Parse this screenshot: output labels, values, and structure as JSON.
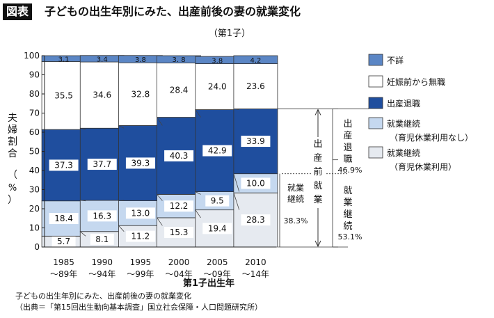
{
  "header": {
    "badge": "図表",
    "title": "子どもの出生年別にみた、出産前後の妻の就業変化"
  },
  "chart_data": {
    "type": "bar",
    "stacked": true,
    "subtitle": "（第1子）",
    "xlabel": "第1子出生年",
    "ylabel": "夫婦割合（%）",
    "ylim": [
      0,
      100
    ],
    "yticks": [
      0,
      10,
      20,
      30,
      40,
      50,
      60,
      70,
      80,
      90,
      100
    ],
    "categories": [
      [
        "1985",
        "〜89年"
      ],
      [
        "1990",
        "〜94年"
      ],
      [
        "1995",
        "〜99年"
      ],
      [
        "2000",
        "〜04年"
      ],
      [
        "2005",
        "〜09年"
      ],
      [
        "2010",
        "〜14年"
      ]
    ],
    "series": [
      {
        "name": "就業継続（育児休業利用）",
        "color": "#e6eaf0",
        "values": [
          5.7,
          8.1,
          11.2,
          15.3,
          19.4,
          28.3
        ],
        "labels": [
          "5.7",
          "8.1",
          "11.2",
          "15.3",
          "19.4",
          "28.3"
        ]
      },
      {
        "name": "就業継続（育児休業利用なし）",
        "color": "#c5d8ef",
        "values": [
          18.4,
          16.3,
          13.0,
          12.2,
          9.5,
          10.0
        ],
        "labels": [
          "18.4",
          "16.3",
          "13.0",
          "12.2",
          "9.5",
          "10.0"
        ]
      },
      {
        "name": "出産退職",
        "color": "#1f4e9e",
        "values": [
          37.3,
          37.7,
          39.3,
          40.3,
          42.9,
          33.9
        ],
        "labels": [
          "37.3",
          "37.7",
          "39.3",
          "40.3",
          "42.9",
          "33.9"
        ]
      },
      {
        "name": "妊娠前から無職",
        "color": "#ffffff",
        "values": [
          35.5,
          34.6,
          32.8,
          28.4,
          24.0,
          23.6
        ],
        "labels": [
          "35.5",
          "34.6",
          "32.8",
          "28.4",
          "24.0",
          "23.6"
        ]
      },
      {
        "name": "不詳",
        "color": "#5b86c5",
        "values": [
          3.1,
          3.4,
          3.8,
          3.8,
          3.8,
          4.2
        ],
        "labels": [
          "3.1",
          "3.4",
          "3.8",
          "3. 8",
          "3.8",
          "4.2"
        ]
      }
    ],
    "legend": {
      "position": "right",
      "items": [
        {
          "lines": [
            "不詳"
          ],
          "color": "#5b86c5"
        },
        {
          "lines": [
            "妊娠前から無職"
          ],
          "color": "#ffffff"
        },
        {
          "lines": [
            "出産退職"
          ],
          "color": "#1f4e9e"
        },
        {
          "lines": [
            "就業継続",
            "（育児休業利用なし）"
          ],
          "color": "#c5d8ef"
        },
        {
          "lines": [
            "就業継続",
            "（育児休業利用）"
          ],
          "color": "#e6eaf0"
        }
      ]
    },
    "annotations": {
      "group_label": "出産前就業",
      "inner_label": [
        "就業",
        "継続"
      ],
      "inner_value": "38.3%",
      "quit_label": [
        "出",
        "産",
        "退",
        "職"
      ],
      "quit_value": "46.9%",
      "cont_label": [
        "就",
        "業",
        "継",
        "続"
      ],
      "cont_value": "53.1%"
    }
  },
  "caption": {
    "line1": "子どもの出生年別にみた、出産前後の妻の就業変化",
    "line2": "（出典＝「第15回出生動向基本調査」国立社会保障・人口問題研究所）"
  }
}
